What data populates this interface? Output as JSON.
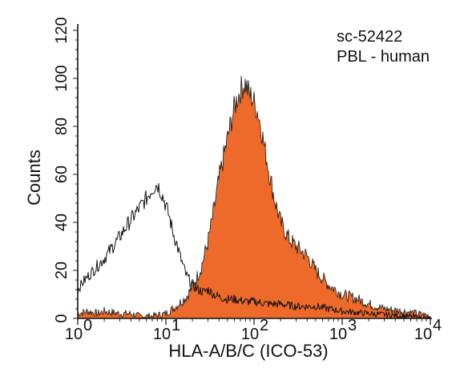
{
  "chart_data": {
    "type": "area",
    "title": "",
    "xlabel": "HLA-A/B/C (ICO-53)",
    "ylabel": "Counts",
    "xscale": "log",
    "xlim": [
      1,
      10000
    ],
    "ylim": [
      0,
      120
    ],
    "grid": false,
    "annotations": [
      "sc-52422",
      "PBL - human"
    ],
    "x_ticks": [
      {
        "value": 1,
        "base": "10",
        "exp": "0"
      },
      {
        "value": 10,
        "base": "10",
        "exp": "1"
      },
      {
        "value": 100,
        "base": "10",
        "exp": "2"
      },
      {
        "value": 1000,
        "base": "10",
        "exp": "3"
      },
      {
        "value": 10000,
        "base": "10",
        "exp": "4"
      }
    ],
    "y_ticks": [
      "0",
      "20",
      "40",
      "60",
      "80",
      "100",
      "120"
    ],
    "colors": {
      "filled": "#ee6a2a",
      "outline": "#111111",
      "axis": "#111111"
    },
    "series": [
      {
        "style": "filled",
        "x": [
          1,
          1.3,
          1.7,
          2,
          3,
          4,
          5,
          7,
          10,
          13,
          17,
          20,
          25,
          30,
          35,
          40,
          45,
          50,
          55,
          60,
          65,
          70,
          75,
          80,
          85,
          90,
          95,
          100,
          110,
          120,
          130,
          140,
          150,
          170,
          200,
          250,
          300,
          400,
          500,
          700,
          1000,
          1500,
          2000,
          3000,
          5000,
          7000,
          10000
        ],
        "y": [
          2,
          3,
          2,
          3,
          2,
          2,
          1,
          1,
          2,
          5,
          9,
          13,
          21,
          32,
          45,
          58,
          67,
          75,
          82,
          88,
          92,
          95,
          97,
          98,
          95,
          93,
          92,
          90,
          86,
          80,
          72,
          66,
          60,
          50,
          40,
          33,
          30,
          26,
          20,
          14,
          10,
          8,
          6,
          4,
          3,
          2,
          1
        ]
      },
      {
        "style": "outline",
        "x": [
          1,
          1.2,
          1.5,
          2,
          2.5,
          3,
          3.5,
          4,
          5,
          6,
          7,
          8,
          9,
          10,
          11,
          12,
          13,
          15,
          17,
          20,
          23,
          27,
          30,
          35,
          40,
          50,
          60,
          80,
          100,
          150,
          200,
          300,
          500,
          1000,
          2000,
          5000,
          10000
        ],
        "y": [
          12,
          16,
          20,
          25,
          30,
          34,
          38,
          41,
          46,
          50,
          54,
          56,
          52,
          47,
          42,
          36,
          32,
          24,
          18,
          14,
          12,
          11,
          12,
          10,
          9,
          8,
          8,
          7,
          7,
          6,
          6,
          5,
          5,
          3,
          2,
          1,
          0
        ]
      }
    ]
  }
}
